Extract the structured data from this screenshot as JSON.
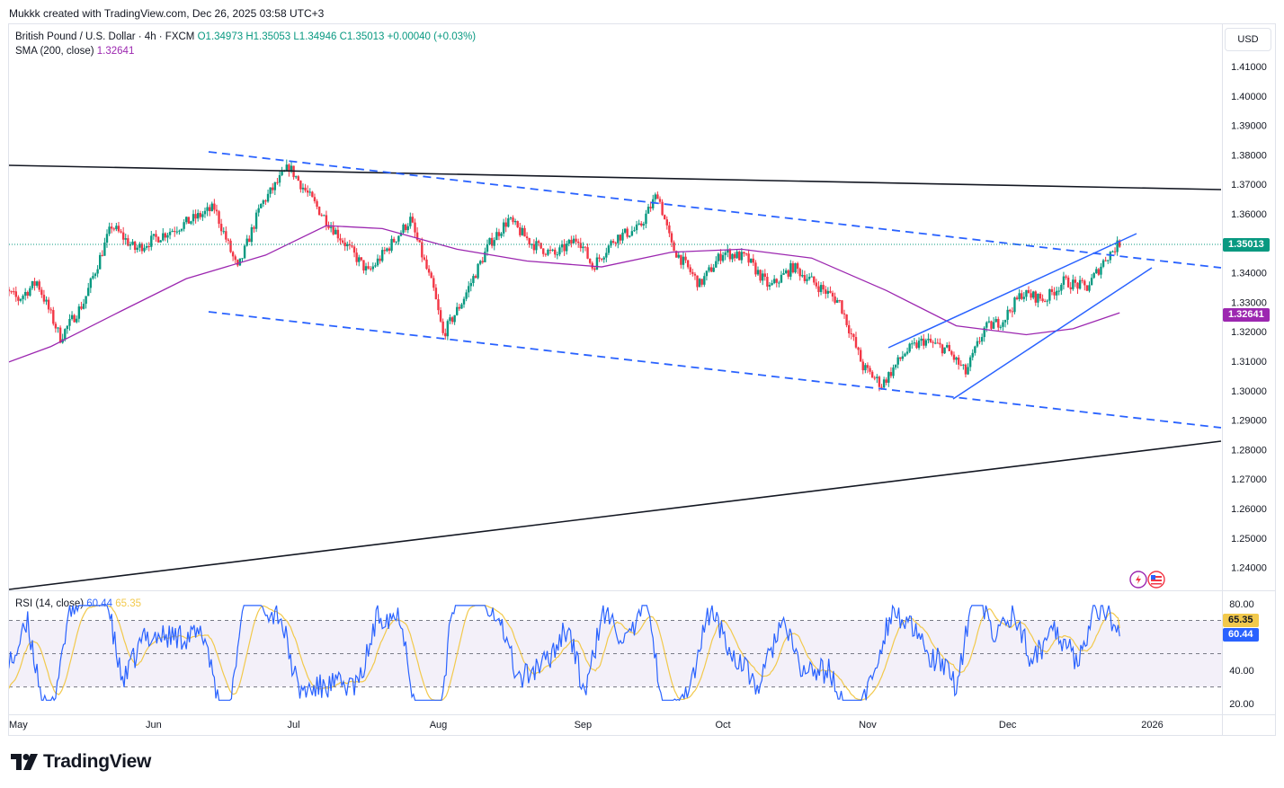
{
  "header": {
    "created_by": "Mukkk created with TradingView.com, Dec 26, 2025 03:58 UTC+3"
  },
  "legend": {
    "symbol": "British Pound / U.S. Dollar · 4h · FXCM",
    "open": "O1.34973",
    "high": "H1.35053",
    "low": "L1.34946",
    "close": "C1.35013",
    "change": "+0.00040 (+0.03%)",
    "sma_label": "SMA (200, close)",
    "sma_value": "1.32641"
  },
  "currency": "USD",
  "rsi_legend": {
    "label": "RSI (14, close)",
    "rsi_value": "60.44",
    "ma_value": "65.35"
  },
  "badges": {
    "price": "1.35013",
    "sma": "1.32641",
    "rsi_ma": "65.35",
    "rsi": "60.44"
  },
  "branding": {
    "logo_text": "TradingView"
  },
  "colors": {
    "up": "#089981",
    "down": "#f23645",
    "sma": "#9c27b0",
    "trendline": "#2962ff",
    "rsi": "#2962ff",
    "rsi_ma": "#f2c94c"
  },
  "chart_data": [
    {
      "type": "candlestick",
      "title": "British Pound / U.S. Dollar · 4h · FXCM",
      "x_ticks": [
        "May",
        "Jun",
        "Jul",
        "Aug",
        "Sep",
        "Oct",
        "Nov",
        "Dec",
        "2026"
      ],
      "y_ticks": [
        "1.41000",
        "1.40000",
        "1.39000",
        "1.38000",
        "1.37000",
        "1.36000",
        "1.35000",
        "1.34000",
        "1.33000",
        "1.32000",
        "1.31000",
        "1.30000",
        "1.29000",
        "1.28000",
        "1.27000",
        "1.26000",
        "1.25000",
        "1.24000"
      ],
      "ylim": [
        1.2325,
        1.42
      ],
      "last_price": 1.35013,
      "price_path": [
        [
          "2025-04-28",
          1.336
        ],
        [
          "2025-05-03",
          1.331
        ],
        [
          "2025-05-07",
          1.337
        ],
        [
          "2025-05-12",
          1.318
        ],
        [
          "2025-05-17",
          1.33
        ],
        [
          "2025-05-23",
          1.356
        ],
        [
          "2025-05-28",
          1.348
        ],
        [
          "2025-06-03",
          1.353
        ],
        [
          "2025-06-08",
          1.357
        ],
        [
          "2025-06-14",
          1.362
        ],
        [
          "2025-06-19",
          1.341
        ],
        [
          "2025-06-24",
          1.363
        ],
        [
          "2025-06-30",
          1.376
        ],
        [
          "2025-07-03",
          1.369
        ],
        [
          "2025-07-07",
          1.36
        ],
        [
          "2025-07-12",
          1.35
        ],
        [
          "2025-07-17",
          1.34
        ],
        [
          "2025-07-22",
          1.35
        ],
        [
          "2025-07-26",
          1.358
        ],
        [
          "2025-07-31",
          1.334
        ],
        [
          "2025-08-02",
          1.319
        ],
        [
          "2025-08-06",
          1.33
        ],
        [
          "2025-08-12",
          1.35
        ],
        [
          "2025-08-16",
          1.358
        ],
        [
          "2025-08-21",
          1.35
        ],
        [
          "2025-08-26",
          1.346
        ],
        [
          "2025-08-31",
          1.352
        ],
        [
          "2025-09-03",
          1.342
        ],
        [
          "2025-09-08",
          1.352
        ],
        [
          "2025-09-13",
          1.355
        ],
        [
          "2025-09-17",
          1.367
        ],
        [
          "2025-09-20",
          1.349
        ],
        [
          "2025-09-26",
          1.336
        ],
        [
          "2025-10-01",
          1.347
        ],
        [
          "2025-10-06",
          1.345
        ],
        [
          "2025-10-11",
          1.335
        ],
        [
          "2025-10-16",
          1.342
        ],
        [
          "2025-10-21",
          1.336
        ],
        [
          "2025-10-26",
          1.33
        ],
        [
          "2025-10-31",
          1.308
        ],
        [
          "2025-11-04",
          1.302
        ],
        [
          "2025-11-09",
          1.313
        ],
        [
          "2025-11-13",
          1.317
        ],
        [
          "2025-11-18",
          1.314
        ],
        [
          "2025-11-22",
          1.306
        ],
        [
          "2025-11-26",
          1.321
        ],
        [
          "2025-11-30",
          1.324
        ],
        [
          "2025-12-04",
          1.333
        ],
        [
          "2025-12-09",
          1.331
        ],
        [
          "2025-12-13",
          1.337
        ],
        [
          "2025-12-18",
          1.335
        ],
        [
          "2025-12-22",
          1.345
        ],
        [
          "2025-12-25",
          1.35013
        ]
      ]
    },
    {
      "type": "line",
      "title": "SMA (200, close)",
      "series": [
        {
          "name": "SMA 200",
          "points": [
            [
              "2025-04-28",
              1.308
            ],
            [
              "2025-05-10",
              1.315
            ],
            [
              "2025-05-25",
              1.327
            ],
            [
              "2025-06-08",
              1.338
            ],
            [
              "2025-06-25",
              1.346
            ],
            [
              "2025-07-08",
              1.356
            ],
            [
              "2025-07-20",
              1.355
            ],
            [
              "2025-08-05",
              1.348
            ],
            [
              "2025-08-20",
              1.344
            ],
            [
              "2025-09-05",
              1.342
            ],
            [
              "2025-09-20",
              1.347
            ],
            [
              "2025-10-05",
              1.348
            ],
            [
              "2025-10-20",
              1.345
            ],
            [
              "2025-11-05",
              1.334
            ],
            [
              "2025-11-20",
              1.322
            ],
            [
              "2025-12-05",
              1.319
            ],
            [
              "2025-12-15",
              1.321
            ],
            [
              "2025-12-25",
              1.32641
            ]
          ]
        }
      ]
    },
    {
      "type": "line",
      "title": "RSI (14, close)",
      "ylim": [
        15,
        85
      ],
      "y_ticks": [
        "80.00",
        "40.00",
        "20.00"
      ],
      "bands": [
        70,
        50,
        30
      ],
      "series": [
        {
          "name": "RSI",
          "last": 60.44
        },
        {
          "name": "RSI-based MA",
          "last": 65.35
        }
      ]
    }
  ]
}
